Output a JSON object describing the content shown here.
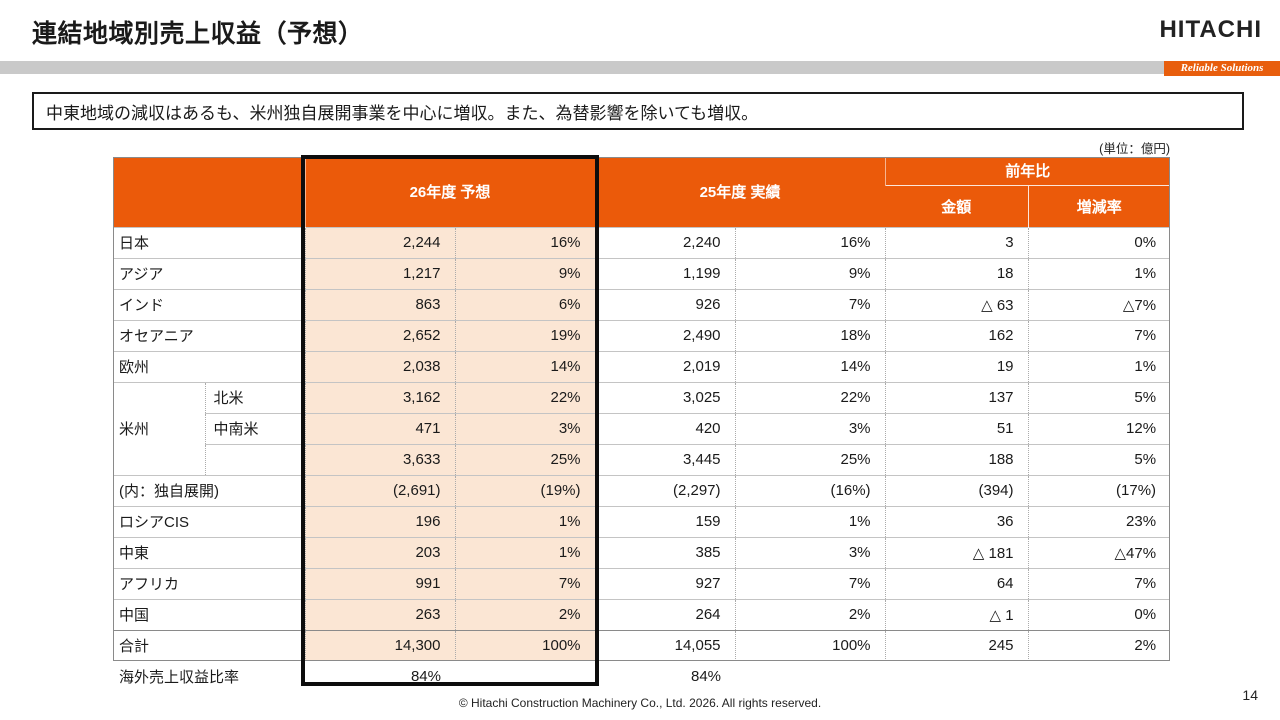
{
  "slide": {
    "title": "連結地域別売上収益（予想）",
    "logo": "HITACHI",
    "tagline": "Reliable Solutions",
    "message": "中東地域の減収はあるも、米州独自展開事業を中心に増収。また、為替影響を除いても増収。",
    "unit_label": "(単位：億円)",
    "page_number": "14",
    "copyright": "© Hitachi Construction Machinery Co., Ltd. 2026. All rights reserved."
  },
  "colors": {
    "header_orange": "#EB5A0A",
    "highlight_peach": "#FBE6D4",
    "tagline_orange": "#E85E0D"
  },
  "table": {
    "group_headers": [
      {
        "label": "26年度 予想"
      },
      {
        "label": "25年度 実績"
      },
      {
        "label": "前年比",
        "sub": [
          "金額",
          "増減率"
        ]
      }
    ],
    "rows": [
      {
        "label": "日本",
        "values": [
          "2,244",
          "16%",
          "2,240",
          "16%",
          "3",
          "0%"
        ]
      },
      {
        "label": "アジア",
        "values": [
          "1,217",
          "9%",
          "1,199",
          "9%",
          "18",
          "1%"
        ]
      },
      {
        "label": "インド",
        "values": [
          "863",
          "6%",
          "926",
          "7%",
          "△ 63",
          "△7%"
        ]
      },
      {
        "label": "オセアニア",
        "values": [
          "2,652",
          "19%",
          "2,490",
          "18%",
          "162",
          "7%"
        ]
      },
      {
        "label": "欧州",
        "values": [
          "2,038",
          "14%",
          "2,019",
          "14%",
          "19",
          "1%"
        ]
      },
      {
        "label": "米州",
        "label_rowspan": 3,
        "sub": "北米",
        "values": [
          "3,162",
          "22%",
          "3,025",
          "22%",
          "137",
          "5%"
        ]
      },
      {
        "sub": "中南米",
        "values": [
          "471",
          "3%",
          "420",
          "3%",
          "51",
          "12%"
        ]
      },
      {
        "sub": "",
        "values": [
          "3,633",
          "25%",
          "3,445",
          "25%",
          "188",
          "5%"
        ]
      },
      {
        "label": "(内：独自展開)",
        "values": [
          "(2,691)",
          "(19%)",
          "(2,297)",
          "(16%)",
          "(394)",
          "(17%)"
        ]
      },
      {
        "label": "ロシアCIS",
        "values": [
          "196",
          "1%",
          "159",
          "1%",
          "36",
          "23%"
        ]
      },
      {
        "label": "中東",
        "values": [
          "203",
          "1%",
          "385",
          "3%",
          "△ 181",
          "△47%"
        ]
      },
      {
        "label": "アフリカ",
        "values": [
          "991",
          "7%",
          "927",
          "7%",
          "64",
          "7%"
        ]
      },
      {
        "label": "中国",
        "values": [
          "263",
          "2%",
          "264",
          "2%",
          "△ 1",
          "0%"
        ]
      },
      {
        "label": "合計",
        "total": true,
        "values": [
          "14,300",
          "100%",
          "14,055",
          "100%",
          "245",
          "2%"
        ]
      },
      {
        "label": "海外売上収益比率",
        "outside": true,
        "values": [
          "84%",
          "",
          "84%",
          "",
          "",
          ""
        ]
      }
    ]
  }
}
